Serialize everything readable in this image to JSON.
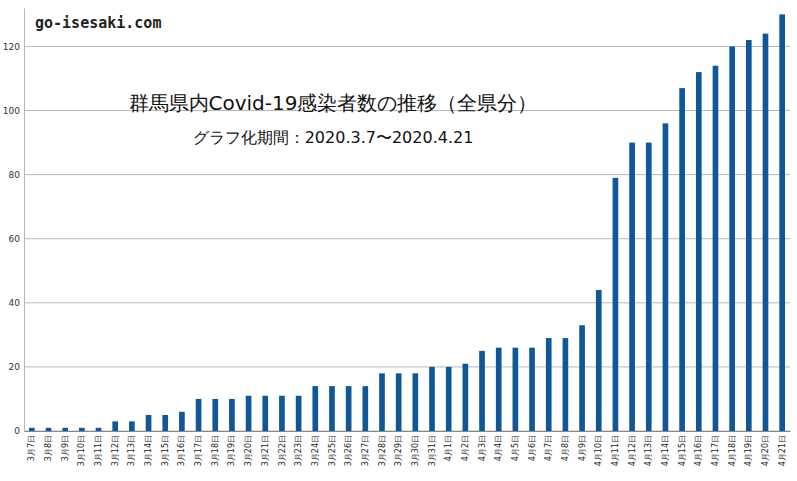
{
  "chart_data": {
    "type": "bar",
    "title": "群馬県内Covid-19感染者数の推移（全県分）",
    "subtitle": "グラフ化期間：2020.3.7〜2020.4.21",
    "annotations": [
      "go-isesaki.com"
    ],
    "categories": [
      "3月7日",
      "3月8日",
      "3月9日",
      "3月10日",
      "3月11日",
      "3月12日",
      "3月13日",
      "3月14日",
      "3月15日",
      "3月16日",
      "3月17日",
      "3月18日",
      "3月19日",
      "3月20日",
      "3月21日",
      "3月22日",
      "3月23日",
      "3月24日",
      "3月25日",
      "3月26日",
      "3月27日",
      "3月28日",
      "3月29日",
      "3月30日",
      "3月31日",
      "4月1日",
      "4月2日",
      "4月3日",
      "4月4日",
      "4月5日",
      "4月6日",
      "4月7日",
      "4月8日",
      "4月9日",
      "4月10日",
      "4月11日",
      "4月12日",
      "4月13日",
      "4月14日",
      "4月15日",
      "4月16日",
      "4月17日",
      "4月18日",
      "4月19日",
      "4月20日",
      "4月21日"
    ],
    "values": [
      1,
      1,
      1,
      1,
      1,
      3,
      3,
      5,
      5,
      6,
      10,
      10,
      10,
      11,
      11,
      11,
      11,
      14,
      14,
      14,
      14,
      18,
      18,
      18,
      20,
      20,
      21,
      25,
      26,
      26,
      26,
      29,
      29,
      33,
      44,
      79,
      90,
      90,
      96,
      107,
      112,
      114,
      120,
      122,
      124,
      130
    ],
    "color": "#0f5796",
    "ylim": [
      0,
      132
    ],
    "yticks": [
      0,
      20,
      40,
      60,
      80,
      100,
      120
    ],
    "grid": true
  }
}
